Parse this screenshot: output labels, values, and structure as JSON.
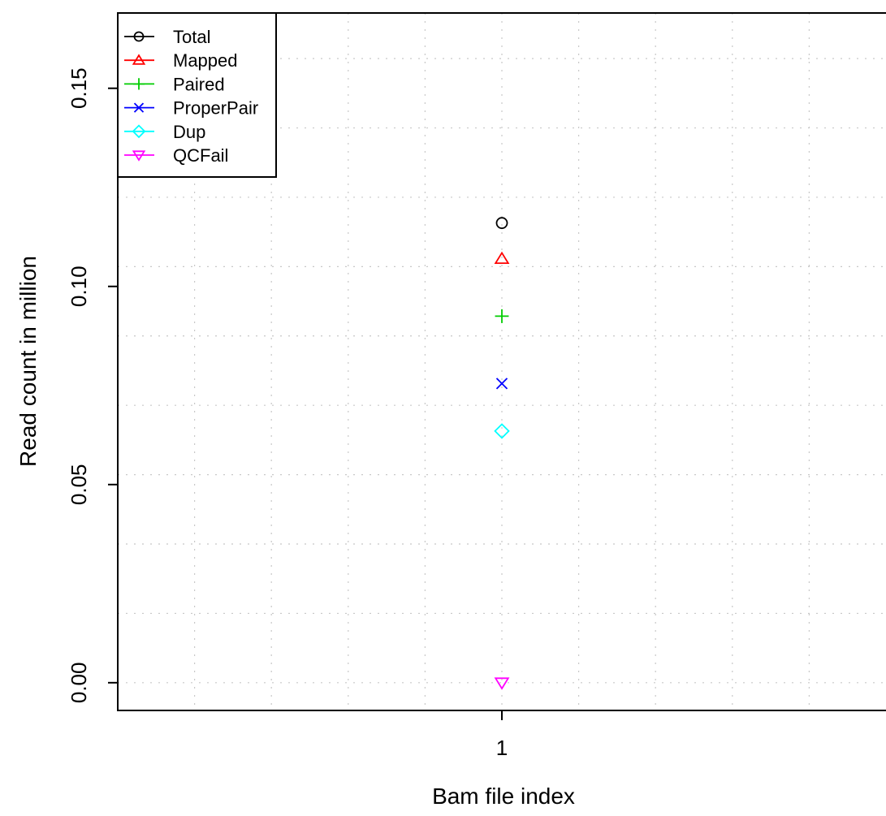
{
  "chart_data": {
    "type": "scatter",
    "title": "",
    "xlabel": "Bam file index",
    "ylabel": "Read count in million",
    "x_ticks": [
      "1"
    ],
    "y_ticks": [
      "0.00",
      "0.05",
      "0.10",
      "0.15"
    ],
    "xlim": [
      0.5,
      1.5
    ],
    "ylim": [
      -0.007,
      0.169
    ],
    "grid": true,
    "legend_position": "top-left",
    "series": [
      {
        "name": "Total",
        "x": [
          1
        ],
        "y": [
          0.116
        ],
        "color": "#000000",
        "marker": "circle"
      },
      {
        "name": "Mapped",
        "x": [
          1
        ],
        "y": [
          0.107
        ],
        "color": "#ff0000",
        "marker": "triangle-up"
      },
      {
        "name": "Paired",
        "x": [
          1
        ],
        "y": [
          0.0925
        ],
        "color": "#00cd00",
        "marker": "plus"
      },
      {
        "name": "ProperPair",
        "x": [
          1
        ],
        "y": [
          0.0755
        ],
        "color": "#0000ff",
        "marker": "cross"
      },
      {
        "name": "Dup",
        "x": [
          1
        ],
        "y": [
          0.0635
        ],
        "color": "#00ffff",
        "marker": "diamond"
      },
      {
        "name": "QCFail",
        "x": [
          1
        ],
        "y": [
          0.0
        ],
        "color": "#ff00ff",
        "marker": "triangle-down"
      }
    ]
  }
}
